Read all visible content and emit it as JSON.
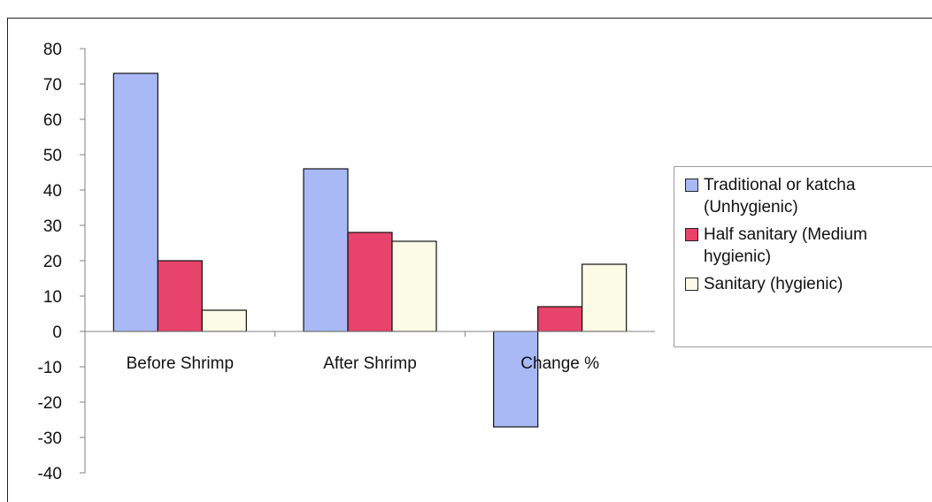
{
  "chart_data": {
    "type": "bar",
    "categories": [
      "Before Shrimp",
      "After Shrimp",
      "Change %"
    ],
    "series": [
      {
        "name": "Traditional or katcha (Unhygienic)",
        "values": [
          73,
          46,
          -27
        ],
        "color": "#a9b9f6"
      },
      {
        "name": "Half sanitary (Medium hygienic)",
        "values": [
          20,
          28,
          7
        ],
        "color": "#e8436a"
      },
      {
        "name": "Sanitary (hygienic)",
        "values": [
          6,
          25.5,
          19
        ],
        "color": "#fbfbe6"
      }
    ],
    "ylim": [
      -40,
      80
    ],
    "yticks": [
      80,
      70,
      60,
      50,
      40,
      30,
      20,
      10,
      0,
      -10,
      -20,
      -30,
      -40
    ],
    "grid": false,
    "legend_position": "right"
  }
}
